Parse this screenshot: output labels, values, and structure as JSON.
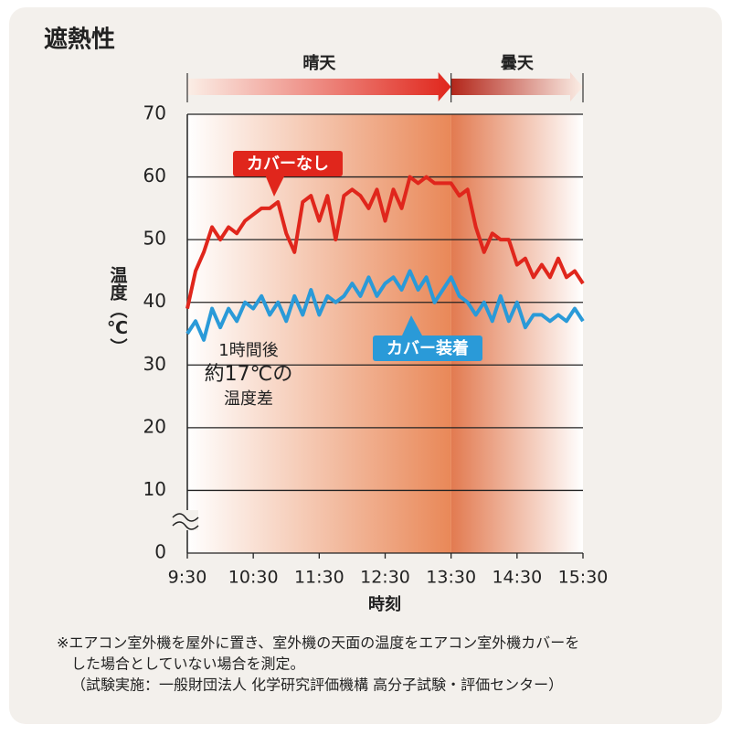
{
  "chart_data": {
    "type": "line",
    "title": "遮熱性",
    "x_label": "時刻",
    "y_label": "温度（℃）",
    "periods": [
      {
        "label": "晴天",
        "start": 9.5,
        "end": 13.5
      },
      {
        "label": "曇天",
        "start": 13.5,
        "end": 15.5
      }
    ],
    "annotation": [
      "1時間後",
      "約17℃の",
      "温度差"
    ],
    "footnote": [
      "※エアコン室外機を屋外に置き、室外機の天面の温度をエアコン室外機カバーを",
      "した場合としていない場合を測定。",
      "（試験実施：一般財団法人 化学研究評価機構 高分子試験・評価センター）"
    ],
    "x": [
      9.5,
      9.625,
      9.75,
      9.875,
      10,
      10.125,
      10.25,
      10.375,
      10.5,
      10.625,
      10.75,
      10.875,
      11,
      11.125,
      11.25,
      11.375,
      11.5,
      11.625,
      11.75,
      11.875,
      12,
      12.125,
      12.25,
      12.375,
      12.5,
      12.625,
      12.75,
      12.875,
      13,
      13.125,
      13.25,
      13.375,
      13.5,
      13.625,
      13.75,
      13.875,
      14,
      14.125,
      14.25,
      14.375,
      14.5,
      14.625,
      14.75,
      14.875,
      15,
      15.125,
      15.25,
      15.375,
      15.5
    ],
    "series": [
      {
        "name": "カバーなし",
        "color": "#e0261c",
        "values": [
          39,
          45,
          48,
          52,
          50,
          52,
          51,
          53,
          54,
          55,
          55,
          56,
          51,
          48,
          56,
          57,
          53,
          57,
          50,
          57,
          58,
          57,
          55,
          58,
          53,
          58,
          55,
          60,
          59,
          60,
          59,
          59,
          59,
          57,
          58,
          52,
          48,
          51,
          50,
          50,
          46,
          47,
          44,
          46,
          44,
          47,
          44,
          45,
          43
        ]
      },
      {
        "name": "カバー装着",
        "color": "#2a9ad8",
        "values": [
          35,
          37,
          34,
          39,
          36,
          39,
          37,
          40,
          39,
          41,
          38,
          40,
          37,
          41,
          38,
          42,
          38,
          41,
          40,
          41,
          43,
          41,
          44,
          41,
          43,
          44,
          42,
          45,
          42,
          44,
          40,
          42,
          44,
          41,
          40,
          38,
          40,
          37,
          41,
          37,
          40,
          36,
          38,
          38,
          37,
          38,
          37,
          39,
          37
        ]
      }
    ],
    "xlim": [
      9.5,
      15.5
    ],
    "xticks": [
      {
        "value": 9.5,
        "label": "9:30"
      },
      {
        "value": 10.5,
        "label": "10:30"
      },
      {
        "value": 11.5,
        "label": "11:30"
      },
      {
        "value": 12.5,
        "label": "12:30"
      },
      {
        "value": 13.5,
        "label": "13:30"
      },
      {
        "value": 14.5,
        "label": "14:30"
      },
      {
        "value": 15.5,
        "label": "15:30"
      }
    ],
    "ylim": [
      0,
      70
    ],
    "yticks": [
      0,
      10,
      20,
      30,
      40,
      50,
      60,
      70
    ],
    "grid": true
  }
}
